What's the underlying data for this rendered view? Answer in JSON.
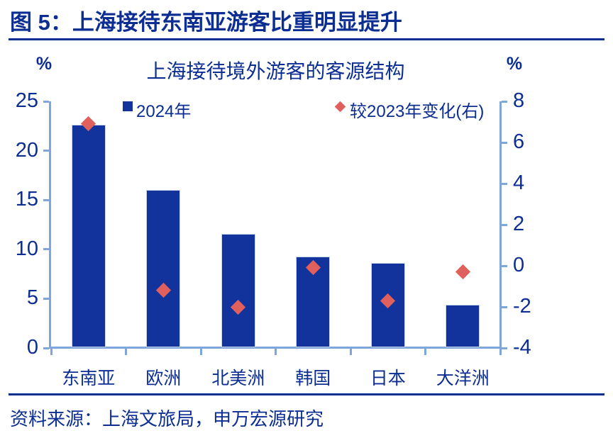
{
  "header": {
    "title": "图 5：上海接待东南亚游客比重明显提升"
  },
  "footer": {
    "source": "资料来源：上海文旅局，申万宏源研究"
  },
  "colors": {
    "navy_text": "#0C2E92",
    "bar_fill": "#11339B",
    "diamond_fill": "#E0605E",
    "axis_line": "#7FA6DC",
    "background": "#FFFFFF"
  },
  "chart_data": {
    "type": "bar",
    "title": "上海接待境外游客的客源结构",
    "categories": [
      "东南亚",
      "欧洲",
      "北美洲",
      "韩国",
      "日本",
      "大洋洲"
    ],
    "series": [
      {
        "name": "2024年",
        "type": "bar",
        "axis": "left",
        "color": "#11339B",
        "values": [
          22.6,
          16.0,
          11.6,
          9.3,
          8.6,
          4.4
        ]
      },
      {
        "name": "较2023年变化(右)",
        "type": "scatter",
        "marker": "diamond",
        "axis": "right",
        "color": "#E0605E",
        "values": [
          6.9,
          -1.2,
          -2.0,
          -0.1,
          -1.7,
          -0.3
        ]
      }
    ],
    "left_axis": {
      "unit": "%",
      "range": [
        0,
        25
      ],
      "ticks": [
        0,
        5,
        10,
        15,
        20,
        25
      ]
    },
    "right_axis": {
      "unit": "%",
      "range": [
        -4,
        8
      ],
      "ticks": [
        -4,
        -2,
        0,
        2,
        4,
        6,
        8
      ]
    },
    "legend_position": "top-inside",
    "grid": false
  }
}
